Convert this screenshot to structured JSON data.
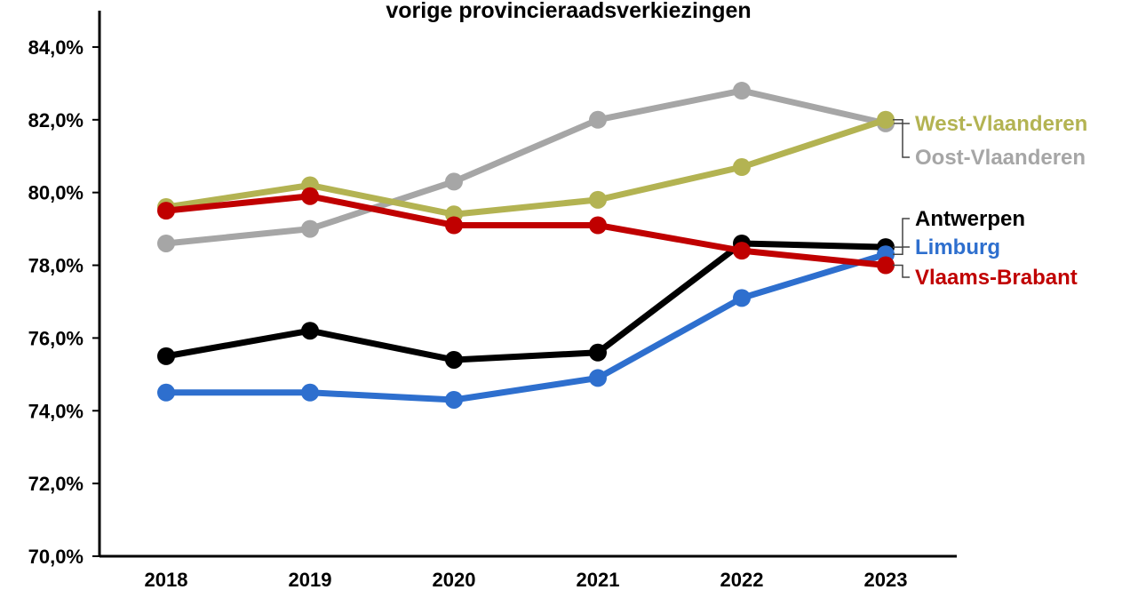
{
  "chart_data": {
    "type": "line",
    "title": "vorige provincieraadsverkiezingen",
    "categories": [
      "2018",
      "2019",
      "2020",
      "2021",
      "2022",
      "2023"
    ],
    "series": [
      {
        "name": "Oost-Vlaanderen",
        "color": "#a6a6a6",
        "values": [
          78.6,
          79.0,
          80.3,
          82.0,
          82.8,
          81.9
        ]
      },
      {
        "name": "West-Vlaanderen",
        "color": "#b3b352",
        "values": [
          79.6,
          80.2,
          79.4,
          79.8,
          80.7,
          82.0
        ]
      },
      {
        "name": "Antwerpen",
        "color": "#000000",
        "values": [
          75.5,
          76.2,
          75.4,
          75.6,
          78.6,
          78.5
        ]
      },
      {
        "name": "Limburg",
        "color": "#2e6fce",
        "values": [
          74.5,
          74.5,
          74.3,
          74.9,
          77.1,
          78.3
        ]
      },
      {
        "name": "Vlaams-Brabant",
        "color": "#c00000",
        "values": [
          79.5,
          79.9,
          79.1,
          79.1,
          78.4,
          78.0
        ]
      }
    ],
    "ylim": [
      70,
      85
    ],
    "yticks": [
      {
        "value": 70,
        "label": "70,0%"
      },
      {
        "value": 72,
        "label": "72,0%"
      },
      {
        "value": 74,
        "label": "74,0%"
      },
      {
        "value": 76,
        "label": "76,0%"
      },
      {
        "value": 78,
        "label": "78,0%"
      },
      {
        "value": 80,
        "label": "80,0%"
      },
      {
        "value": 82,
        "label": "82,0%"
      },
      {
        "value": 84,
        "label": "84,0%"
      }
    ]
  }
}
